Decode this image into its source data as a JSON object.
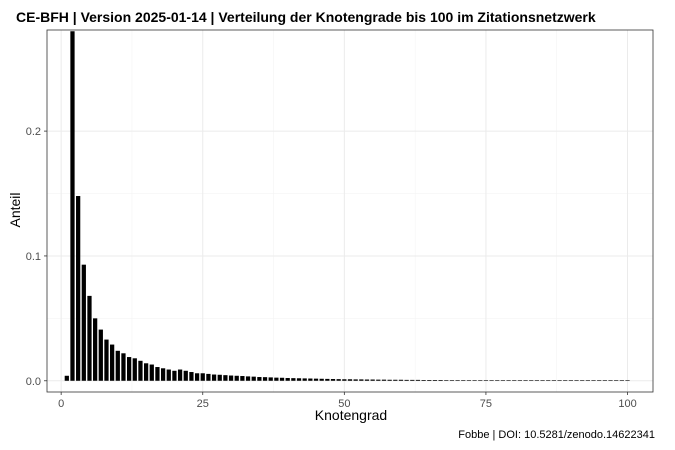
{
  "chart_data": {
    "type": "bar",
    "title": "CE-BFH | Version 2025-01-14 | Verteilung der Knotengrade bis 100 im Zitationsnetzwerk",
    "xlabel": "Knotengrad",
    "ylabel": "Anteil",
    "caption": "Fobbe | DOI: 10.5281/zenodo.14622341",
    "xlim": [
      -2.5,
      104.5
    ],
    "ylim": [
      -0.009,
      0.281
    ],
    "x_ticks": [
      0,
      25,
      50,
      75,
      100
    ],
    "x_tick_labels": [
      "0",
      "25",
      "50",
      "75",
      "100"
    ],
    "y_ticks": [
      0.0,
      0.1,
      0.2
    ],
    "y_tick_labels": [
      "0.0",
      "0.1",
      "0.2"
    ],
    "grid": true,
    "legend": "none",
    "bar_color": "#000000",
    "x": [
      1,
      2,
      3,
      4,
      5,
      6,
      7,
      8,
      9,
      10,
      11,
      12,
      13,
      14,
      15,
      16,
      17,
      18,
      19,
      20,
      21,
      22,
      23,
      24,
      25,
      26,
      27,
      28,
      29,
      30,
      31,
      32,
      33,
      34,
      35,
      36,
      37,
      38,
      39,
      40,
      41,
      42,
      43,
      44,
      45,
      46,
      47,
      48,
      49,
      50,
      51,
      52,
      53,
      54,
      55,
      56,
      57,
      58,
      59,
      60,
      61,
      62,
      63,
      64,
      65,
      66,
      67,
      68,
      69,
      70,
      71,
      72,
      73,
      74,
      75,
      76,
      77,
      78,
      79,
      80,
      81,
      82,
      83,
      84,
      85,
      86,
      87,
      88,
      89,
      90,
      91,
      92,
      93,
      94,
      95,
      96,
      97,
      98,
      99,
      100
    ],
    "values": [
      0.004,
      0.28,
      0.148,
      0.093,
      0.068,
      0.05,
      0.041,
      0.033,
      0.029,
      0.024,
      0.022,
      0.019,
      0.018,
      0.016,
      0.014,
      0.013,
      0.011,
      0.01,
      0.009,
      0.008,
      0.009,
      0.008,
      0.007,
      0.006,
      0.006,
      0.0055,
      0.005,
      0.0048,
      0.0045,
      0.0042,
      0.004,
      0.0038,
      0.0035,
      0.0033,
      0.003,
      0.0029,
      0.0027,
      0.0025,
      0.0024,
      0.0022,
      0.0021,
      0.002,
      0.0019,
      0.0018,
      0.0017,
      0.0016,
      0.0015,
      0.0014,
      0.0013,
      0.0012,
      0.0012,
      0.0011,
      0.0011,
      0.001,
      0.001,
      0.0009,
      0.0009,
      0.0008,
      0.0008,
      0.0008,
      0.0007,
      0.0007,
      0.0007,
      0.0006,
      0.0006,
      0.0006,
      0.0006,
      0.0005,
      0.0005,
      0.0005,
      0.0005,
      0.0004,
      0.0004,
      0.0004,
      0.0004,
      0.0004,
      0.0004,
      0.0003,
      0.0003,
      0.0003,
      0.0003,
      0.0003,
      0.0003,
      0.0003,
      0.0003,
      0.0002,
      0.0002,
      0.0002,
      0.0002,
      0.0002,
      0.0002,
      0.0002,
      0.0002,
      0.0002,
      0.0002,
      0.0002,
      0.0002,
      0.0002,
      0.0002,
      0.0002
    ]
  }
}
